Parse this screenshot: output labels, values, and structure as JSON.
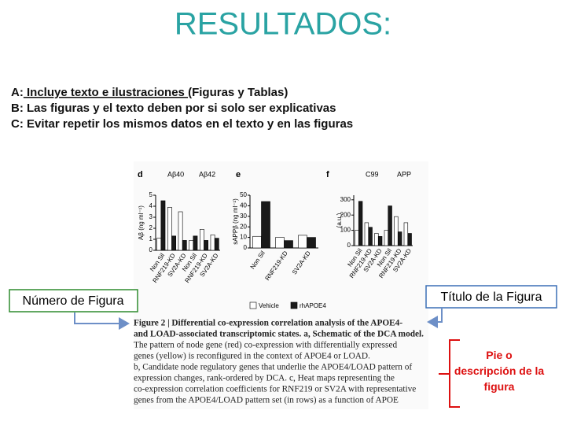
{
  "title": "RESULTADOS:",
  "points": [
    {
      "label": "A:",
      "underlined": " Incluye texto e ilustraciones ",
      "text": "(Figuras y Tablas)"
    },
    {
      "label": "B:",
      "text": " Las figuras y el texto deben por si solo ser explicativas"
    },
    {
      "label": "C:",
      "text": " Evitar repetir los mismos datos en el texto y en las figuras"
    }
  ],
  "figure": {
    "legend": [
      {
        "name": "Vehicle",
        "color": "#ffffff"
      },
      {
        "name": "rhAPOE4",
        "color": "#1a1a1a"
      }
    ],
    "panels": [
      {
        "label": "d",
        "headers": [
          "Aβ40",
          "Aβ42"
        ],
        "ylabel": "Aβ (ng ml⁻¹)",
        "ylim": [
          0,
          5
        ],
        "yticks": [
          0,
          1,
          2,
          3,
          4,
          5
        ],
        "categories": [
          "Non Sil",
          "RNF219-KD",
          "SV2A-KD",
          "Non Sil",
          "RNF219-KD",
          "SV2A-KD"
        ],
        "series": [
          [
            1.1,
            3.9,
            3.5,
            0.9,
            1.9,
            1.4
          ],
          [
            4.5,
            1.3,
            0.9,
            1.3,
            0.9,
            1.1
          ]
        ]
      },
      {
        "label": "e",
        "headers": [],
        "ylabel": "sAPPβ (ng ml⁻¹)",
        "ylim": [
          0,
          50
        ],
        "yticks": [
          0,
          10,
          20,
          30,
          40,
          50
        ],
        "categories": [
          "Non Sil",
          "RNF219-KD",
          "SV2A-KD"
        ],
        "series": [
          [
            11,
            10,
            12
          ],
          [
            44,
            7,
            10
          ]
        ]
      },
      {
        "label": "f",
        "headers": [
          "C99",
          "APP"
        ],
        "ylabel": "(a.u.)",
        "ylim": [
          0,
          330
        ],
        "yticks": [
          0,
          100,
          200,
          300
        ],
        "categories": [
          "Non Sil",
          "RNF219-KD",
          "SV2A-KD",
          "Non Sil",
          "RNF219-KD",
          "SV2A-KD"
        ],
        "series": [
          [
            100,
            150,
            80,
            100,
            190,
            150
          ],
          [
            290,
            120,
            60,
            260,
            90,
            80
          ]
        ]
      }
    ],
    "caption": [
      "Figure 2 | Differential co-expression correlation analysis of the APOE4-",
      "and LOAD-associated transcriptomic states. a, Schematic of the DCA model.",
      "The pattern of node gene (red) co-expression with differentially expressed",
      "genes (yellow) is reconfigured in the context of APOE4 or LOAD.",
      "b, Candidate node regulatory genes that underlie the APOE4/LOAD pattern of",
      "expression changes, rank-ordered by DCA. c, Heat maps representing the",
      "co-expression correlation coefficients for RNF219 or SV2A with representative",
      "genes from the APOE4/LOAD pattern set (in rows) as a function of APOE"
    ]
  },
  "callouts": {
    "number": "Número de Figura",
    "title": "Título de la Figura",
    "description": "Pie o descripción de la figura"
  }
}
